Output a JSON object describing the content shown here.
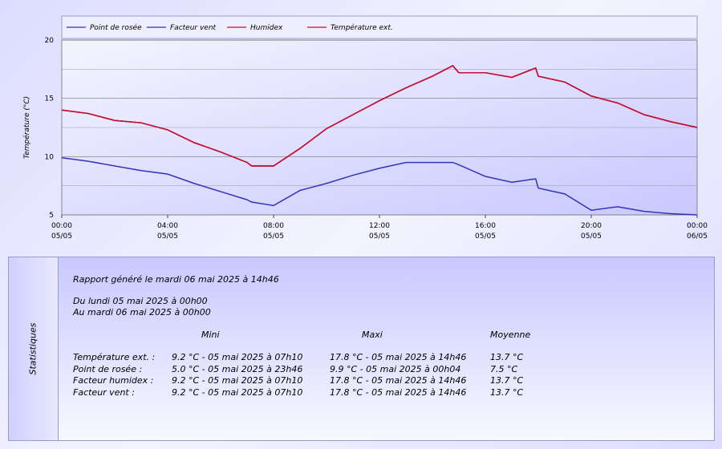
{
  "chart_data": {
    "type": "line",
    "y_label": "Température (°C)",
    "x": [
      0,
      1,
      2,
      3,
      4,
      5,
      6,
      7,
      7.17,
      8,
      9,
      10,
      11,
      12,
      13,
      14,
      14.77,
      15,
      16,
      17,
      17.9,
      18,
      19,
      20,
      21,
      22,
      23,
      24
    ],
    "xlim": [
      0,
      24
    ],
    "xticks": [
      {
        "value": 0,
        "label": "00:00"
      },
      {
        "value": 4,
        "label": "04:00"
      },
      {
        "value": 8,
        "label": "08:00"
      },
      {
        "value": 12,
        "label": "12:00"
      },
      {
        "value": 16,
        "label": "16:00"
      },
      {
        "value": 20,
        "label": "20:00"
      },
      {
        "value": 24,
        "label": "00:00"
      }
    ],
    "xtick_dates": [
      "05/05",
      "05/05",
      "05/05",
      "05/05",
      "05/05",
      "05/05",
      "06/05"
    ],
    "ylim": [
      5,
      20
    ],
    "yticks": [
      5,
      10,
      15,
      20
    ],
    "yminor_ticks": [
      7.5,
      12.5,
      17.5
    ],
    "grid": true,
    "legend": "top",
    "series": [
      {
        "name": "Point de rosée",
        "color": "#3333bb",
        "values": [
          9.9,
          9.6,
          9.2,
          8.8,
          8.5,
          7.7,
          7.0,
          6.3,
          6.1,
          5.8,
          7.1,
          7.7,
          8.4,
          9.0,
          9.5,
          9.5,
          9.5,
          9.3,
          8.3,
          7.8,
          8.1,
          7.3,
          6.8,
          5.4,
          5.7,
          5.3,
          5.1,
          5.0
        ]
      },
      {
        "name": "Facteur vent",
        "color": "#3333bb",
        "values": [
          14.0,
          13.7,
          13.1,
          12.9,
          12.3,
          11.2,
          10.4,
          9.5,
          9.2,
          9.2,
          10.7,
          12.4,
          13.6,
          14.8,
          15.9,
          16.9,
          17.8,
          17.2,
          17.2,
          16.8,
          17.6,
          16.9,
          16.4,
          15.2,
          14.6,
          13.6,
          13.0,
          12.5
        ]
      },
      {
        "name": "Humidex",
        "color": "#c8102e",
        "values": [
          14.0,
          13.7,
          13.1,
          12.9,
          12.3,
          11.2,
          10.4,
          9.5,
          9.2,
          9.2,
          10.7,
          12.4,
          13.6,
          14.8,
          15.9,
          16.9,
          17.8,
          17.2,
          17.2,
          16.8,
          17.6,
          16.9,
          16.4,
          15.2,
          14.6,
          13.6,
          13.0,
          12.5
        ]
      },
      {
        "name": "Température ext.",
        "color": "#c8102e",
        "values": [
          14.0,
          13.7,
          13.1,
          12.9,
          12.3,
          11.2,
          10.4,
          9.5,
          9.2,
          9.2,
          10.7,
          12.4,
          13.6,
          14.8,
          15.9,
          16.9,
          17.8,
          17.2,
          17.2,
          16.8,
          17.6,
          16.9,
          16.4,
          15.2,
          14.6,
          13.6,
          13.0,
          12.5
        ]
      }
    ]
  },
  "report": {
    "side_title": "Statistiques",
    "generated": "Rapport généré le mardi 06 mai 2025 à 14h46",
    "from": "Du lundi 05 mai 2025 à 00h00",
    "to": "Au mardi 06 mai 2025 à 00h00",
    "columns": [
      "Mini",
      "Maxi",
      "Moyenne"
    ],
    "rows": [
      [
        "Température ext. :",
        "9.2 °C - 05 mai 2025 à 07h10",
        "17.8 °C - 05 mai 2025 à 14h46",
        "13.7 °C"
      ],
      [
        "Point de rosée :",
        "5.0 °C - 05 mai 2025 à 23h46",
        "9.9 °C - 05 mai 2025 à 00h04",
        "7.5 °C"
      ],
      [
        "Facteur humidex :",
        "9.2 °C - 05 mai 2025 à 07h10",
        "17.8 °C - 05 mai 2025 à 14h46",
        "13.7 °C"
      ],
      [
        "Facteur vent :",
        "9.2 °C - 05 mai 2025 à 07h10",
        "17.8 °C - 05 mai 2025 à 14h46",
        "13.7 °C"
      ]
    ]
  }
}
